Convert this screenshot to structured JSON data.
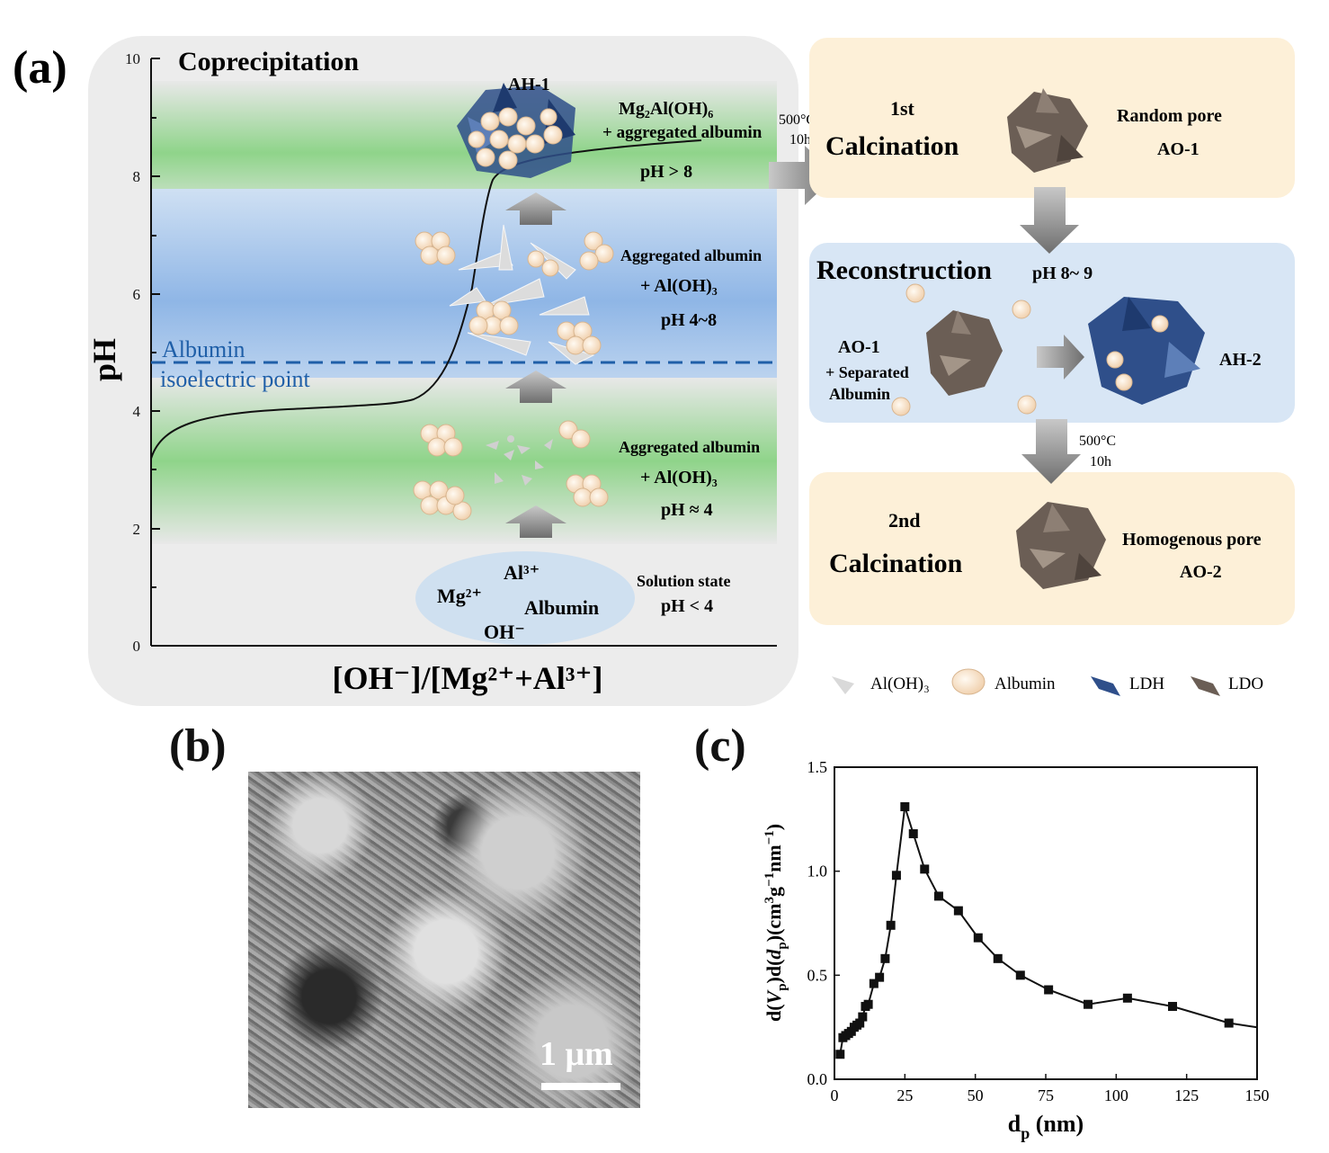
{
  "panel_a": {
    "label": "(a)",
    "title": "Coprecipitation",
    "y_axis_label": "pH",
    "x_axis_label": "[OH⁻]/[Mg²⁺+Al³⁺]",
    "y_ticks": [
      "10",
      "8",
      "6",
      "4",
      "2",
      "0"
    ],
    "isoelectric_line1": "Albumin",
    "isoelectric_line2": "isoelectric point",
    "stage_ah1": {
      "name": "AH-1",
      "formula": "Mg₂Al(OH)₆",
      "desc": "+ aggregated albumin",
      "ph": "pH > 8"
    },
    "stage_mid": {
      "line1": "Aggregated albumin",
      "line2": "+ Al(OH)₃",
      "ph": "pH 4~8"
    },
    "stage_low": {
      "line1": "Aggregated albumin",
      "line2": "+ Al(OH)₃",
      "ph": "pH ≈ 4"
    },
    "solution": {
      "mg": "Mg²⁺",
      "al": "Al³⁺",
      "albumin": "Albumin",
      "oh": "OH⁻",
      "state": "Solution state",
      "ph": "pH < 4"
    },
    "calc_arrow_temp": "500°C",
    "calc_arrow_time": "10h",
    "first_calc": {
      "sup": "1st",
      "label": "Calcination",
      "pore": "Random pore",
      "code": "AO-1"
    },
    "reconstruction": {
      "title": "Reconstruction",
      "ph": "pH 8~ 9",
      "in1": "AO-1",
      "in2": "+ Separated",
      "in3": "Albumin",
      "out": "AH-2"
    },
    "second_arrow_temp": "500°C",
    "second_arrow_time": "10h",
    "second_calc": {
      "sup": "2nd",
      "label": "Calcination",
      "pore": "Homogenous pore",
      "code": "AO-2"
    },
    "legend": [
      "Al(OH)₃",
      "Albumin",
      "LDH",
      "LDO"
    ],
    "colors": {
      "ldh": "#2f4f8a",
      "ldo": "#6b5e55",
      "albumin": "#f5dcc0",
      "aloh3": "#d9d9d9",
      "green_band": "#8fd48a",
      "blue_band": "#8fb6e6",
      "calc_bg": "#fdf0d8",
      "recon_bg": "#d8e6f5",
      "dash": "#1f5fa8"
    }
  },
  "panel_b": {
    "label": "(b)",
    "scale": "1 μm"
  },
  "panel_c": {
    "label": "(c)"
  },
  "chart_data": {
    "type": "line",
    "xlabel": "dp (nm)",
    "ylabel": "d(Vp)d(dp)(cm³g⁻¹nm⁻¹)",
    "xlim": [
      0,
      150
    ],
    "ylim": [
      0,
      1.5
    ],
    "xticks": [
      0,
      25,
      50,
      75,
      100,
      125,
      150
    ],
    "yticks": [
      0.0,
      0.5,
      1.0,
      1.5
    ],
    "series": [
      {
        "x": [
          2,
          3,
          4,
          5,
          6,
          7,
          8,
          9,
          10,
          11,
          12,
          14,
          16,
          18,
          20,
          22,
          25,
          28,
          32,
          37,
          44,
          51,
          58,
          66,
          76,
          90,
          104,
          120,
          140
        ],
        "y": [
          0.12,
          0.2,
          0.21,
          0.22,
          0.23,
          0.25,
          0.26,
          0.27,
          0.3,
          0.35,
          0.36,
          0.46,
          0.49,
          0.58,
          0.74,
          0.98,
          1.31,
          1.18,
          1.01,
          0.88,
          0.81,
          0.68,
          0.58,
          0.5,
          0.43,
          0.36,
          0.39,
          0.35,
          0.27
        ],
        "marker": "square"
      }
    ],
    "tail": {
      "x": 150,
      "y": 0.25
    }
  }
}
